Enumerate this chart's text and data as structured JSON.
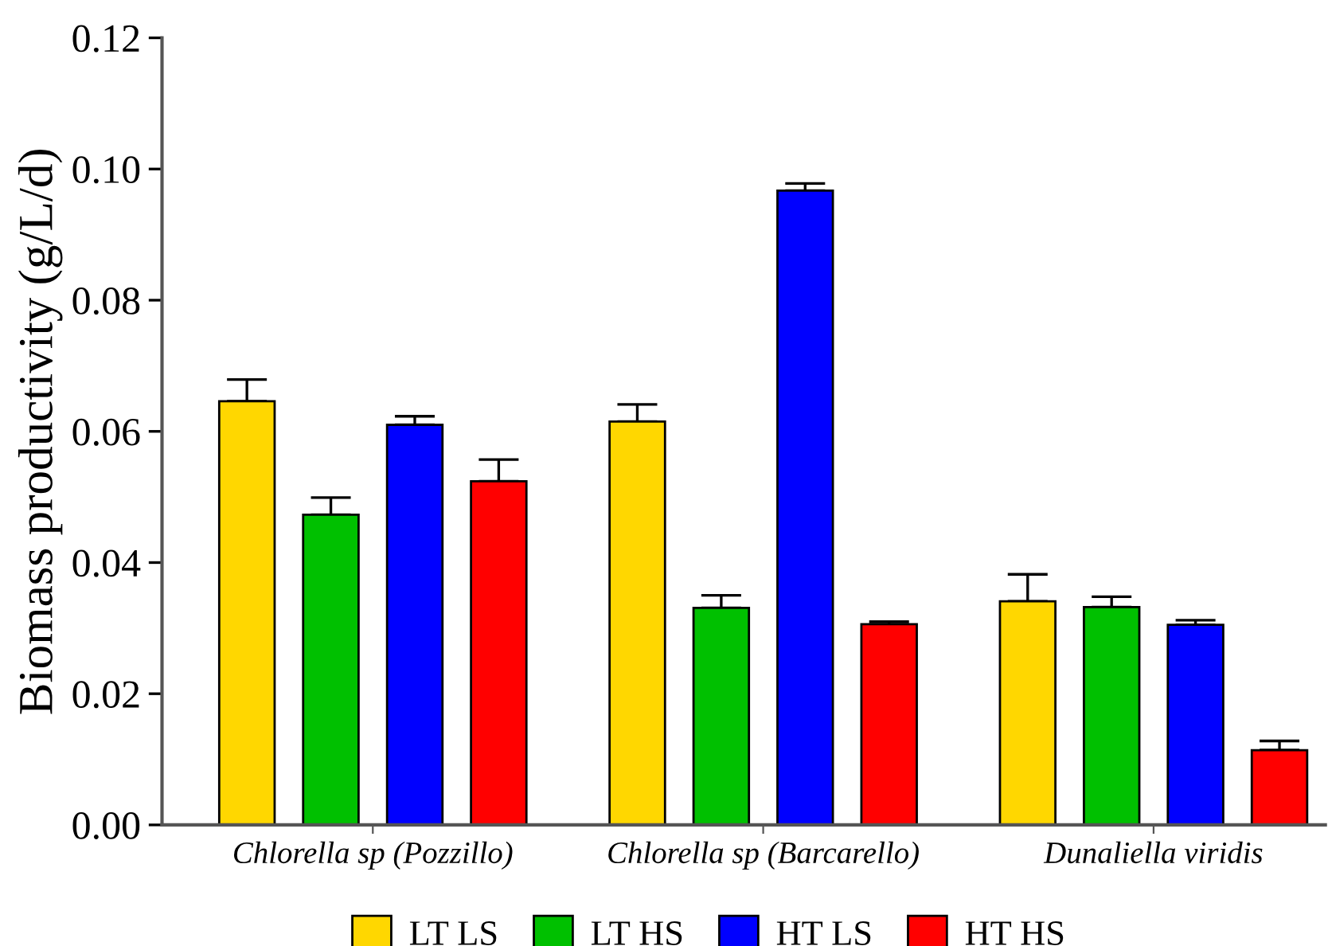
{
  "chart_data": {
    "type": "bar",
    "ylabel": "Biomass productivity (g/L/d)",
    "categories": [
      "Chlorella sp (Pozzillo)",
      "Chlorella sp (Barcarello)",
      "Dunaliella viridis"
    ],
    "series": [
      {
        "name": "LT LS",
        "color": "#ffd700",
        "values": [
          0.0646,
          0.0615,
          0.0341
        ],
        "errors": [
          0.0033,
          0.0026,
          0.0041
        ]
      },
      {
        "name": "LT HS",
        "color": "#00c000",
        "values": [
          0.0473,
          0.0331,
          0.0332
        ],
        "errors": [
          0.0026,
          0.0019,
          0.0016
        ]
      },
      {
        "name": "HT LS",
        "color": "#0000ff",
        "values": [
          0.061,
          0.0967,
          0.0305
        ],
        "errors": [
          0.0013,
          0.0011,
          0.0007
        ]
      },
      {
        "name": "HT HS",
        "color": "#ff0000",
        "values": [
          0.0524,
          0.0306,
          0.0114
        ],
        "errors": [
          0.0033,
          0.0004,
          0.0014
        ]
      }
    ],
    "ylim": [
      0,
      0.12
    ],
    "yticks": [
      {
        "value": 0,
        "label": "0.00"
      },
      {
        "value": 0.02,
        "label": "0.02"
      },
      {
        "value": 0.04,
        "label": "0.04"
      },
      {
        "value": 0.06,
        "label": "0.06"
      },
      {
        "value": 0.08,
        "label": "0.08"
      },
      {
        "value": 0.1,
        "label": "0.10"
      },
      {
        "value": 0.12,
        "label": "0.12"
      }
    ],
    "grid": false,
    "legend": "bottom"
  }
}
